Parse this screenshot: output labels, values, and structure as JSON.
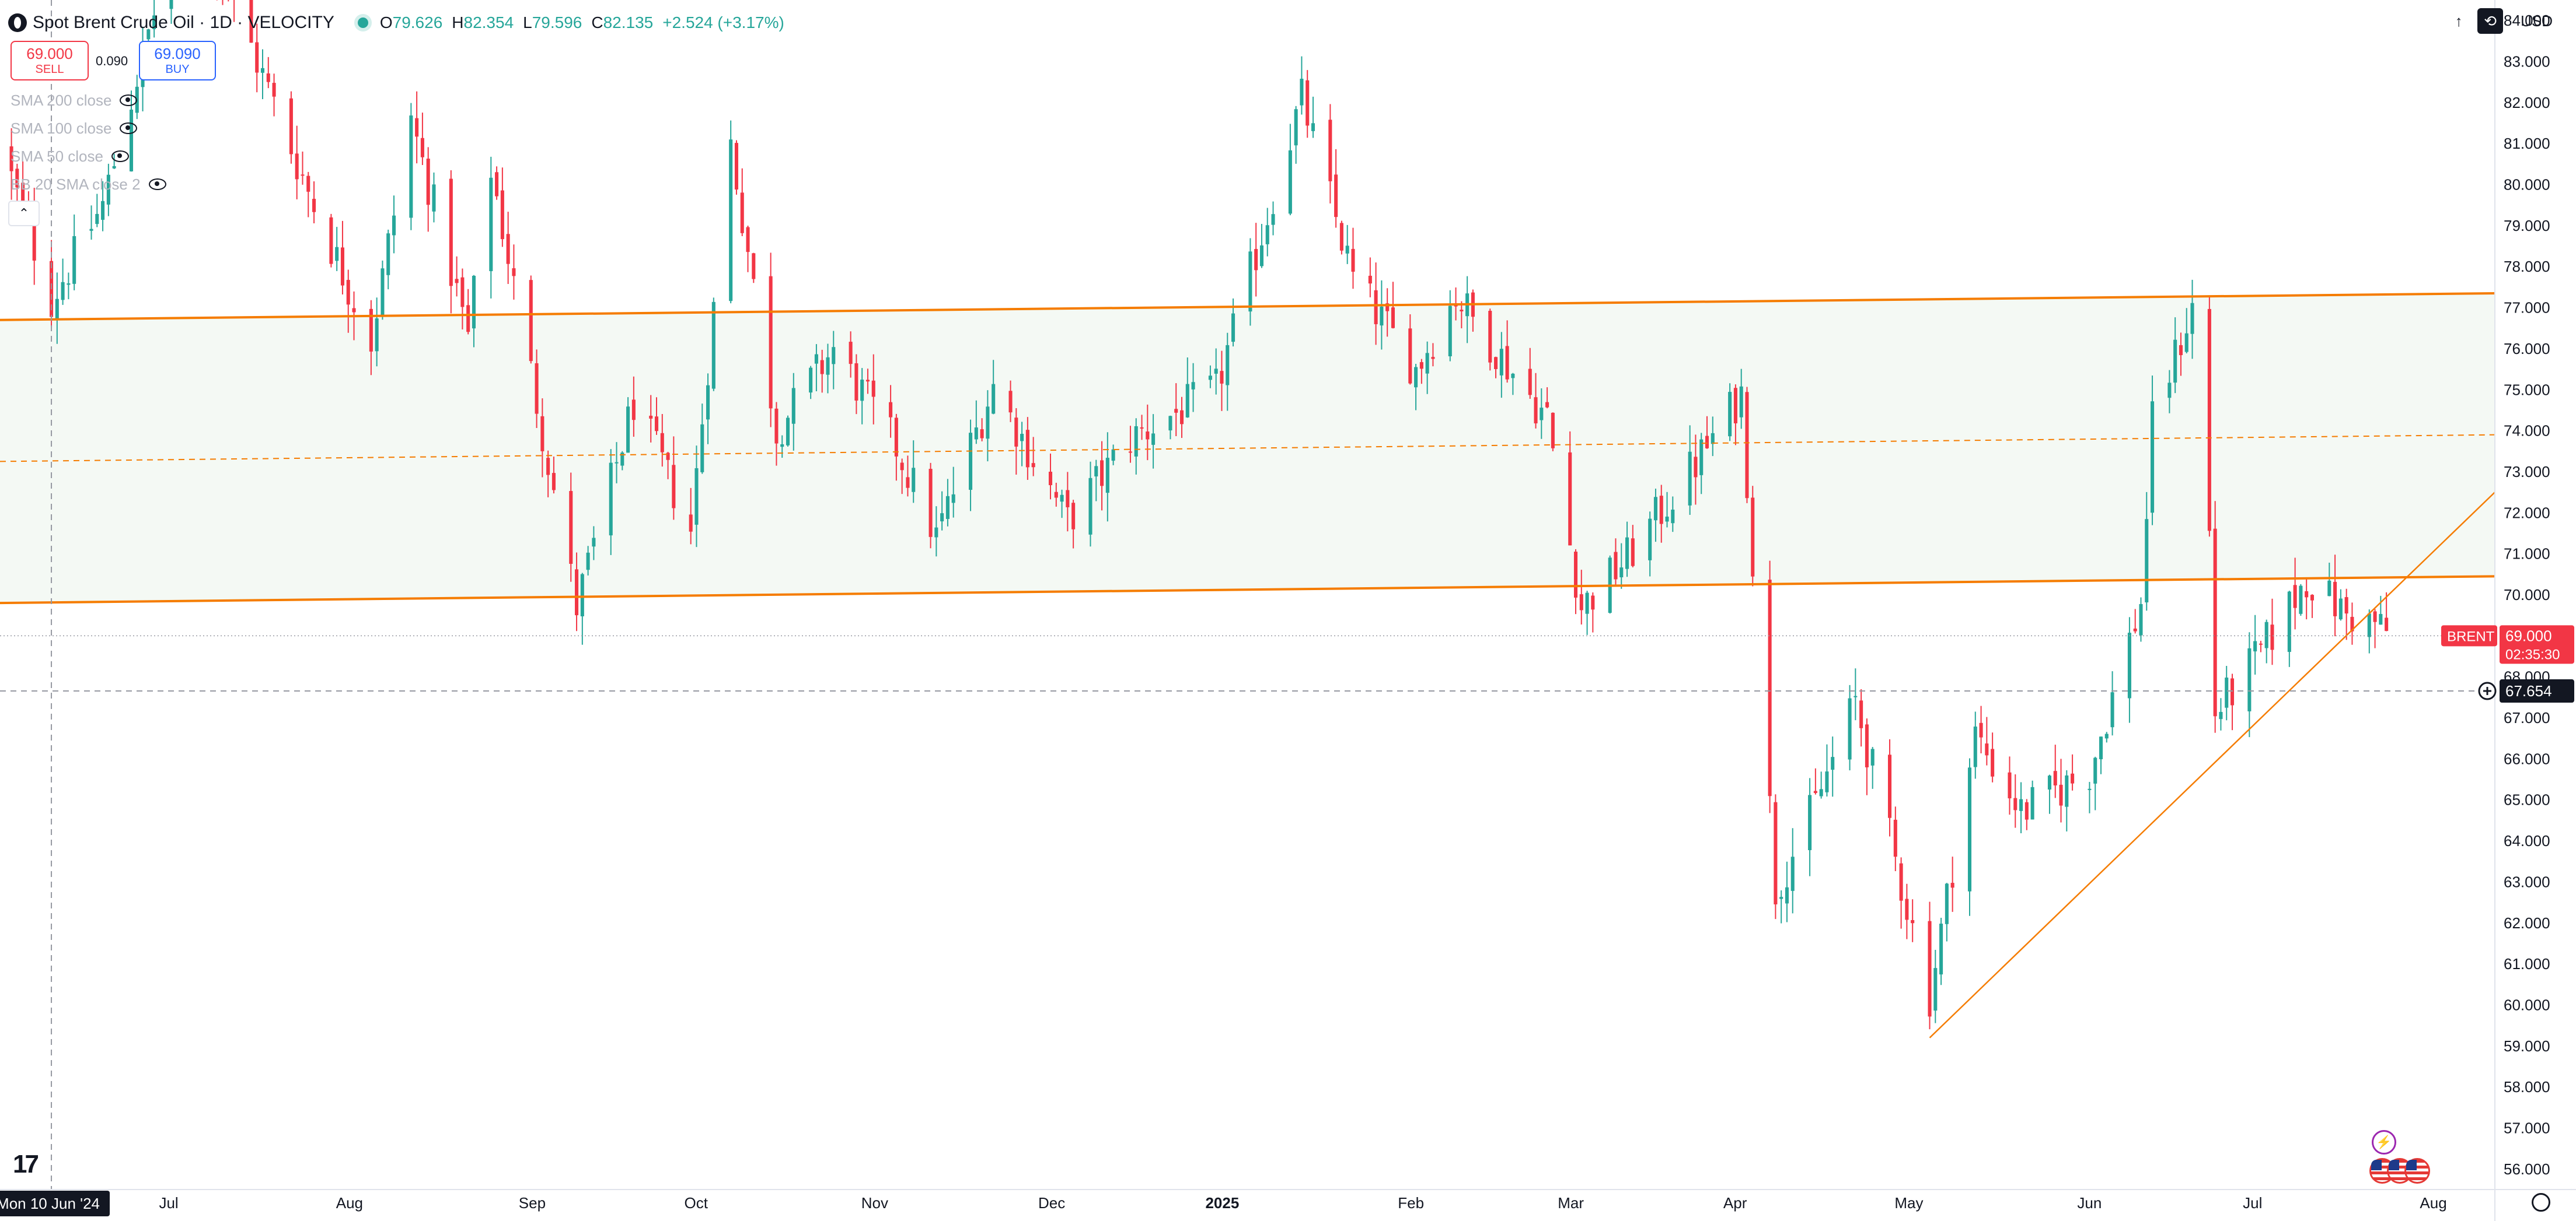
{
  "header": {
    "symbol_title": "Spot Brent Crude Oil · 1D · VELOCITY",
    "ohlc": {
      "o_label": "O",
      "o_value": "79.626",
      "h_label": "H",
      "h_value": "82.354",
      "l_label": "L",
      "l_value": "79.596",
      "c_label": "C",
      "c_value": "82.135",
      "change": "+2.524 (+3.17%)"
    }
  },
  "trade_panel": {
    "sell_price": "69.000",
    "sell_label": "SELL",
    "spread": "0.090",
    "buy_price": "69.090",
    "buy_label": "BUY"
  },
  "indicators": [
    {
      "label": "SMA 200 close"
    },
    {
      "label": "SMA 100 close"
    },
    {
      "label": "SMA 50 close"
    },
    {
      "label": "BB 20 SMA close 2"
    }
  ],
  "toolbar": {
    "currency": "USD"
  },
  "branding": {
    "logo_text": "17"
  },
  "colors": {
    "up": "#26a69a",
    "down": "#f23645",
    "channel": "#f57c00",
    "channel_fill": "#f4f9f4",
    "price_tag": "#f23645",
    "crosshair_tag": "#131722"
  },
  "chart_data": {
    "type": "candlestick",
    "ylim": [
      55.5,
      84.5
    ],
    "xlim": [
      "2024-06-01",
      "2025-08-12"
    ],
    "y_ticks": [
      "56.000",
      "57.000",
      "58.000",
      "59.000",
      "60.000",
      "61.000",
      "62.000",
      "63.000",
      "64.000",
      "65.000",
      "66.000",
      "67.000",
      "68.000",
      "69.000",
      "70.000",
      "71.000",
      "72.000",
      "73.000",
      "74.000",
      "75.000",
      "76.000",
      "77.000",
      "78.000",
      "79.000",
      "80.000",
      "81.000",
      "82.000",
      "83.000",
      "84.000"
    ],
    "x_ticks": [
      {
        "label": "Jul",
        "date": "2024-07-01"
      },
      {
        "label": "Aug",
        "date": "2024-08-01"
      },
      {
        "label": "Sep",
        "date": "2024-09-02"
      },
      {
        "label": "Oct",
        "date": "2024-10-01"
      },
      {
        "label": "Nov",
        "date": "2024-11-01"
      },
      {
        "label": "Dec",
        "date": "2024-12-02"
      },
      {
        "label": "2025",
        "date": "2025-01-01"
      },
      {
        "label": "Feb",
        "date": "2025-02-03"
      },
      {
        "label": "Mar",
        "date": "2025-03-03"
      },
      {
        "label": "Apr",
        "date": "2025-04-01"
      },
      {
        "label": "May",
        "date": "2025-05-01"
      },
      {
        "label": "Jun",
        "date": "2025-06-02"
      },
      {
        "label": "Jul",
        "date": "2025-07-01"
      },
      {
        "label": "Aug",
        "date": "2025-08-01"
      }
    ],
    "crosshair": {
      "date": "2024-06-10",
      "date_label": "Mon 10 Jun '24",
      "price": 67.654,
      "price_label": "67.654"
    },
    "last_price": {
      "symbol": "BRENT",
      "price": 69.0,
      "price_label": "69.000",
      "countdown": "02:35:30"
    },
    "channel": {
      "upper": {
        "start": [
          "2024-06-01",
          76.7
        ],
        "end": [
          "2025-08-12",
          77.35
        ]
      },
      "lower": {
        "start": [
          "2024-06-01",
          69.8
        ],
        "end": [
          "2025-08-12",
          70.45
        ]
      },
      "midline": {
        "start": [
          "2024-06-01",
          73.25
        ],
        "end": [
          "2025-08-12",
          73.9
        ]
      }
    },
    "trendline": {
      "start": [
        "2025-05-05",
        59.2
      ],
      "end": [
        "2025-08-12",
        72.5
      ]
    },
    "anchors": [
      [
        "2024-06-01",
        81.0
      ],
      [
        "2024-06-10",
        77.2
      ],
      [
        "2024-06-19",
        79.5
      ],
      [
        "2024-07-04",
        87.3
      ],
      [
        "2024-07-16",
        83.0
      ],
      [
        "2024-07-26",
        79.5
      ],
      [
        "2024-08-05",
        76.2
      ],
      [
        "2024-08-12",
        81.6
      ],
      [
        "2024-08-22",
        76.3
      ],
      [
        "2024-08-26",
        80.4
      ],
      [
        "2024-09-10",
        69.7
      ],
      [
        "2024-09-20",
        74.7
      ],
      [
        "2024-09-30",
        71.6
      ],
      [
        "2024-10-07",
        81.0
      ],
      [
        "2024-10-15",
        74.0
      ],
      [
        "2024-10-25",
        76.0
      ],
      [
        "2024-11-05",
        73.6
      ],
      [
        "2024-11-12",
        71.4
      ],
      [
        "2024-11-22",
        75.1
      ],
      [
        "2024-12-05",
        71.8
      ],
      [
        "2024-12-16",
        73.8
      ],
      [
        "2024-12-31",
        75.0
      ],
      [
        "2025-01-15",
        82.1
      ],
      [
        "2025-01-24",
        77.7
      ],
      [
        "2025-02-04",
        75.5
      ],
      [
        "2025-02-11",
        77.3
      ],
      [
        "2025-02-27",
        74.3
      ],
      [
        "2025-03-05",
        69.7
      ],
      [
        "2025-03-13",
        70.9
      ],
      [
        "2025-03-25",
        73.2
      ],
      [
        "2025-04-02",
        74.9
      ],
      [
        "2025-04-08",
        62.8
      ],
      [
        "2025-04-15",
        64.9
      ],
      [
        "2025-04-22",
        67.4
      ],
      [
        "2025-05-05",
        60.2
      ],
      [
        "2025-05-13",
        66.6
      ],
      [
        "2025-05-21",
        64.7
      ],
      [
        "2025-06-02",
        65.7
      ],
      [
        "2025-06-11",
        69.8
      ],
      [
        "2025-06-13",
        74.2
      ],
      [
        "2025-06-20",
        77.0
      ],
      [
        "2025-06-23",
        71.5
      ],
      [
        "2025-06-24",
        67.1
      ],
      [
        "2025-07-02",
        68.6
      ],
      [
        "2025-07-10",
        70.4
      ],
      [
        "2025-07-17",
        69.5
      ],
      [
        "2025-07-22",
        69.3
      ],
      [
        "2025-07-25",
        69.0
      ]
    ]
  }
}
